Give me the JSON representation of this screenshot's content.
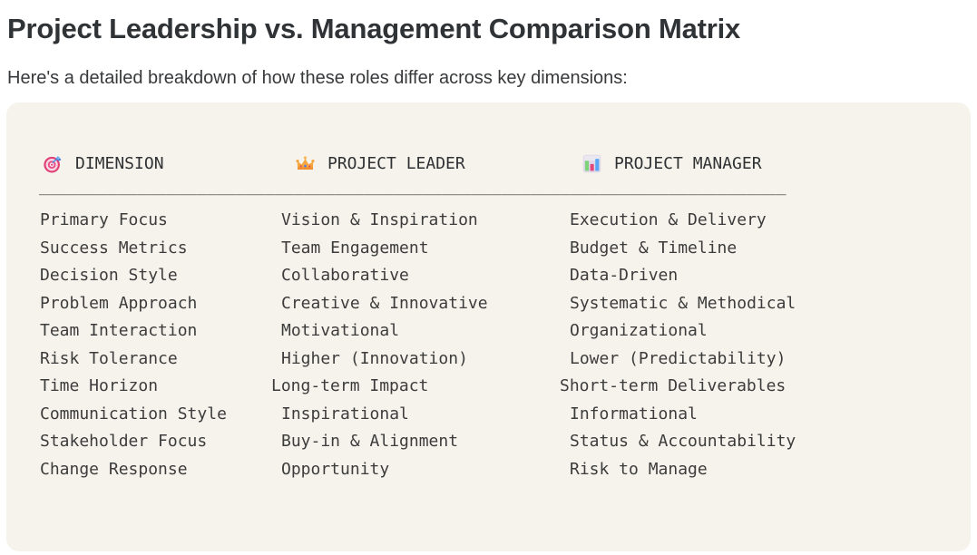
{
  "page": {
    "title": "Project Leadership vs. Management Comparison Matrix",
    "subtitle": "Here's a detailed breakdown of how these roles differ across key dimensions:"
  },
  "table": {
    "columns": [
      {
        "icon": "target-icon",
        "label": "DIMENSION"
      },
      {
        "icon": "crown-icon",
        "label": "PROJECT LEADER"
      },
      {
        "icon": "bar-chart-icon",
        "label": "PROJECT MANAGER"
      }
    ],
    "separator": "____________________________________________________________________________",
    "rows": [
      {
        "dimension": "Primary Focus",
        "leader": "Vision & Inspiration",
        "manager": "Execution & Delivery"
      },
      {
        "dimension": "Success Metrics",
        "leader": "Team Engagement",
        "manager": "Budget & Timeline"
      },
      {
        "dimension": "Decision Style",
        "leader": "Collaborative",
        "manager": "Data-Driven"
      },
      {
        "dimension": "Problem Approach",
        "leader": "Creative & Innovative",
        "manager": "Systematic & Methodical"
      },
      {
        "dimension": "Team Interaction",
        "leader": "Motivational",
        "manager": "Organizational"
      },
      {
        "dimension": "Risk Tolerance",
        "leader": "Higher (Innovation)",
        "manager": "Lower (Predictability)"
      },
      {
        "dimension": "Time Horizon",
        "leader": "Long-term Impact",
        "manager": "Short-term Deliverables"
      },
      {
        "dimension": "Communication Style",
        "leader": "Inspirational",
        "manager": "Informational"
      },
      {
        "dimension": "Stakeholder Focus",
        "leader": "Buy-in & Alignment",
        "manager": "Status & Accountability"
      },
      {
        "dimension": "Change Response",
        "leader": "Opportunity",
        "manager": "Risk to Manage"
      }
    ]
  },
  "colors": {
    "card_background": "#f6f3ec",
    "title": "#303336",
    "subtitle": "#37393b",
    "table_text": "#3c3c3c",
    "target_pink": "#e04278",
    "crown_gold": "#f6a640",
    "chart_blue": "#58a6f5",
    "chart_green": "#7ed37a",
    "chart_pink": "#e2487c"
  }
}
